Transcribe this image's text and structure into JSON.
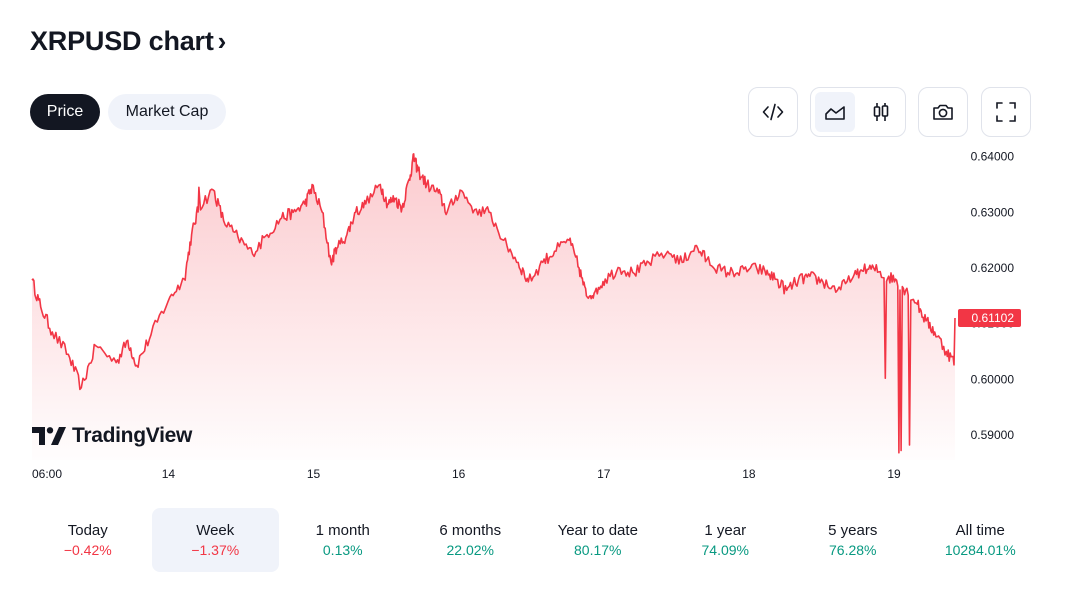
{
  "header": {
    "title": "XRPUSD chart",
    "chevron": "›"
  },
  "tabs": [
    {
      "label": "Price",
      "active": true
    },
    {
      "label": "Market Cap",
      "active": false
    }
  ],
  "toolbar": {
    "embed_icon": "code-icon",
    "line_icon": "area-chart-icon",
    "candle_icon": "candlestick-icon",
    "snapshot_icon": "camera-icon",
    "fullscreen_icon": "fullscreen-icon"
  },
  "brand": {
    "logo_text": "TradingView"
  },
  "colors": {
    "line": "#f23645",
    "fill": "#f23645",
    "price_badge": "#f23645",
    "positive": "#089981",
    "negative": "#f23645"
  },
  "chart_data": {
    "type": "area",
    "y_ticks": [
      "0.64000",
      "0.63000",
      "0.62000",
      "0.61000",
      "0.60000",
      "0.59000"
    ],
    "x_ticks": [
      "06:00",
      "14",
      "15",
      "16",
      "17",
      "18",
      "19"
    ],
    "ylim": [
      0.5855,
      0.643
    ],
    "xlim": [
      0,
      6.36
    ],
    "last_price": "0.61102",
    "anchors": [
      [
        0.0,
        0.6178
      ],
      [
        0.06,
        0.613
      ],
      [
        0.14,
        0.6085
      ],
      [
        0.25,
        0.6045
      ],
      [
        0.34,
        0.5985
      ],
      [
        0.44,
        0.606
      ],
      [
        0.58,
        0.603
      ],
      [
        0.66,
        0.607
      ],
      [
        0.72,
        0.6025
      ],
      [
        0.82,
        0.608
      ],
      [
        0.95,
        0.6148
      ],
      [
        1.05,
        0.618
      ],
      [
        1.1,
        0.626
      ],
      [
        1.15,
        0.631
      ],
      [
        1.25,
        0.634
      ],
      [
        1.32,
        0.6285
      ],
      [
        1.42,
        0.6255
      ],
      [
        1.52,
        0.6225
      ],
      [
        1.62,
        0.626
      ],
      [
        1.72,
        0.629
      ],
      [
        1.8,
        0.63
      ],
      [
        1.88,
        0.6315
      ],
      [
        1.93,
        0.6345
      ],
      [
        2.0,
        0.63
      ],
      [
        2.06,
        0.621
      ],
      [
        2.1,
        0.6235
      ],
      [
        2.17,
        0.626
      ],
      [
        2.23,
        0.63
      ],
      [
        2.3,
        0.6315
      ],
      [
        2.4,
        0.635
      ],
      [
        2.45,
        0.6315
      ],
      [
        2.5,
        0.6325
      ],
      [
        2.55,
        0.6308
      ],
      [
        2.6,
        0.636
      ],
      [
        2.63,
        0.6398
      ],
      [
        2.66,
        0.6375
      ],
      [
        2.72,
        0.635
      ],
      [
        2.8,
        0.6335
      ],
      [
        2.86,
        0.63
      ],
      [
        2.95,
        0.634
      ],
      [
        3.05,
        0.6305
      ],
      [
        3.15,
        0.63
      ],
      [
        3.25,
        0.625
      ],
      [
        3.35,
        0.621
      ],
      [
        3.42,
        0.6175
      ],
      [
        3.52,
        0.621
      ],
      [
        3.6,
        0.623
      ],
      [
        3.7,
        0.625
      ],
      [
        3.77,
        0.62
      ],
      [
        3.82,
        0.615
      ],
      [
        3.88,
        0.6158
      ],
      [
        3.95,
        0.618
      ],
      [
        4.05,
        0.62
      ],
      [
        4.15,
        0.619
      ],
      [
        4.25,
        0.621
      ],
      [
        4.38,
        0.623
      ],
      [
        4.48,
        0.621
      ],
      [
        4.57,
        0.624
      ],
      [
        4.65,
        0.6215
      ],
      [
        4.75,
        0.6195
      ],
      [
        4.85,
        0.619
      ],
      [
        4.95,
        0.62
      ],
      [
        5.05,
        0.6195
      ],
      [
        5.12,
        0.618
      ],
      [
        5.2,
        0.616
      ],
      [
        5.28,
        0.6178
      ],
      [
        5.36,
        0.6185
      ],
      [
        5.45,
        0.6175
      ],
      [
        5.55,
        0.616
      ],
      [
        5.65,
        0.618
      ],
      [
        5.72,
        0.6195
      ],
      [
        5.8,
        0.62
      ],
      [
        5.88,
        0.6185
      ],
      [
        5.95,
        0.618
      ],
      [
        6.02,
        0.616
      ],
      [
        6.1,
        0.6135
      ],
      [
        6.16,
        0.6105
      ],
      [
        6.22,
        0.6085
      ],
      [
        6.3,
        0.605
      ],
      [
        6.36,
        0.603
      ]
    ]
  },
  "periods": [
    {
      "label": "Today",
      "value": "−0.42%",
      "sign": "neg",
      "active": false
    },
    {
      "label": "Week",
      "value": "−1.37%",
      "sign": "neg",
      "active": true
    },
    {
      "label": "1 month",
      "value": "0.13%",
      "sign": "pos",
      "active": false
    },
    {
      "label": "6 months",
      "value": "22.02%",
      "sign": "pos",
      "active": false
    },
    {
      "label": "Year to date",
      "value": "80.17%",
      "sign": "pos",
      "active": false
    },
    {
      "label": "1 year",
      "value": "74.09%",
      "sign": "pos",
      "active": false
    },
    {
      "label": "5 years",
      "value": "76.28%",
      "sign": "pos",
      "active": false
    },
    {
      "label": "All time",
      "value": "10284.01%",
      "sign": "pos",
      "active": false
    }
  ]
}
